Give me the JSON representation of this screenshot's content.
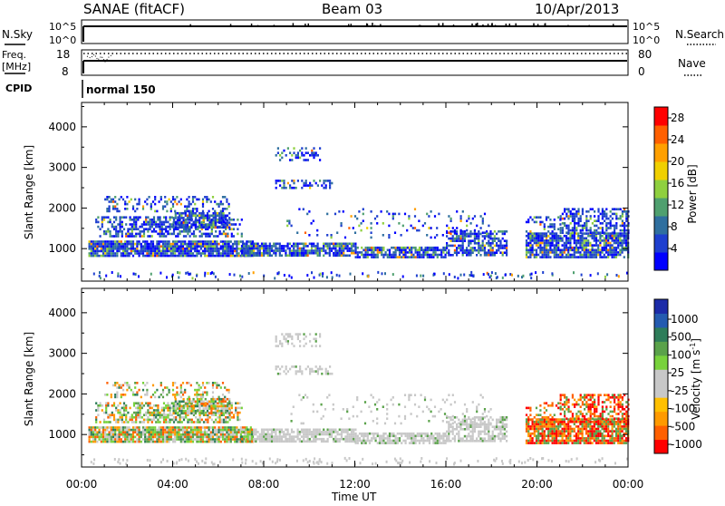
{
  "header": {
    "site_title": "SANAE (fitACF)",
    "beam": "Beam 03",
    "date": "10/Apr/2013"
  },
  "colors": {
    "power_scale": [
      "#0000ff",
      "#1e3fcf",
      "#2f6f9f",
      "#4fa06f",
      "#8fd03f",
      "#f0d000",
      "#ffa000",
      "#ff6000",
      "#ff0000"
    ],
    "velocity_scale": [
      "#1c2ba8",
      "#245bb0",
      "#2e7d5a",
      "#5aa24a",
      "#78d23c",
      "#c8c8c8",
      "#c8c8c8",
      "#ffc000",
      "#ff9a00",
      "#ff6000",
      "#ff0000"
    ]
  },
  "chart_data": [
    {
      "type": "line",
      "name": "nsky-nsearch-panel",
      "left_label": "N.Sky",
      "right_label": "N.Search",
      "left_ticks": [
        "10^5",
        "10^0"
      ],
      "right_ticks": [
        "10^5",
        "10^0"
      ]
    },
    {
      "type": "line",
      "name": "freq-nave-panel",
      "left_label": "Freq.",
      "left_unit": "[MHz]",
      "right_label": "Nave",
      "left_ticks": [
        "18",
        "8"
      ],
      "right_ticks": [
        "80",
        "0"
      ]
    },
    {
      "type": "table",
      "name": "cpid-row",
      "label": "CPID",
      "value": "normal 150"
    },
    {
      "type": "heatmap",
      "name": "power-panel",
      "ylabel": "Slant Range [km]",
      "yticks": [
        1000,
        2000,
        3000,
        4000
      ],
      "ylim": [
        200,
        4600
      ],
      "colorbar_label": "Power [dB]",
      "colorbar_ticks": [
        "4",
        "8",
        "12",
        "16",
        "20",
        "24",
        "28"
      ],
      "colorbar_range": [
        0,
        30
      ]
    },
    {
      "type": "heatmap",
      "name": "velocity-panel",
      "ylabel": "Slant Range [km]",
      "yticks": [
        1000,
        2000,
        3000,
        4000
      ],
      "ylim": [
        200,
        4600
      ],
      "colorbar_label": "Velocity [m s",
      "colorbar_label_sup": "-1",
      "colorbar_label_close": "]",
      "colorbar_ticks": [
        "1000",
        "500",
        "100",
        "25",
        "-25",
        "-100",
        "-500",
        "-1000"
      ]
    }
  ],
  "time_axis": {
    "xlabel": "Time UT",
    "xlim_hours": [
      0,
      24
    ],
    "ticks": [
      "00:00",
      "04:00",
      "08:00",
      "12:00",
      "16:00",
      "20:00",
      "00:00"
    ]
  }
}
